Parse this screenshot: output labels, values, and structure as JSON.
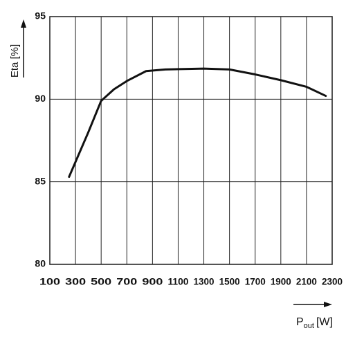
{
  "chart_data": {
    "type": "line",
    "ylabel": "Eta [%]",
    "xlabel": {
      "symbol": "P",
      "subscript": "out",
      "unit": "[W]"
    },
    "x": [
      250,
      400,
      500,
      600,
      700,
      850,
      1000,
      1300,
      1500,
      1700,
      1900,
      2100,
      2250
    ],
    "series": [
      {
        "color": "#111111",
        "values": [
          85.3,
          88.0,
          89.9,
          90.6,
          91.1,
          91.7,
          91.8,
          91.85,
          91.8,
          91.5,
          91.15,
          90.75,
          90.2
        ]
      }
    ],
    "xlim": [
      100,
      2300
    ],
    "ylim": [
      80,
      95
    ],
    "xticks": [
      100,
      300,
      500,
      700,
      900,
      1100,
      1300,
      1500,
      1700,
      1900,
      2100,
      2300
    ],
    "yticks": [
      80,
      85,
      90,
      95
    ],
    "grid": true
  }
}
